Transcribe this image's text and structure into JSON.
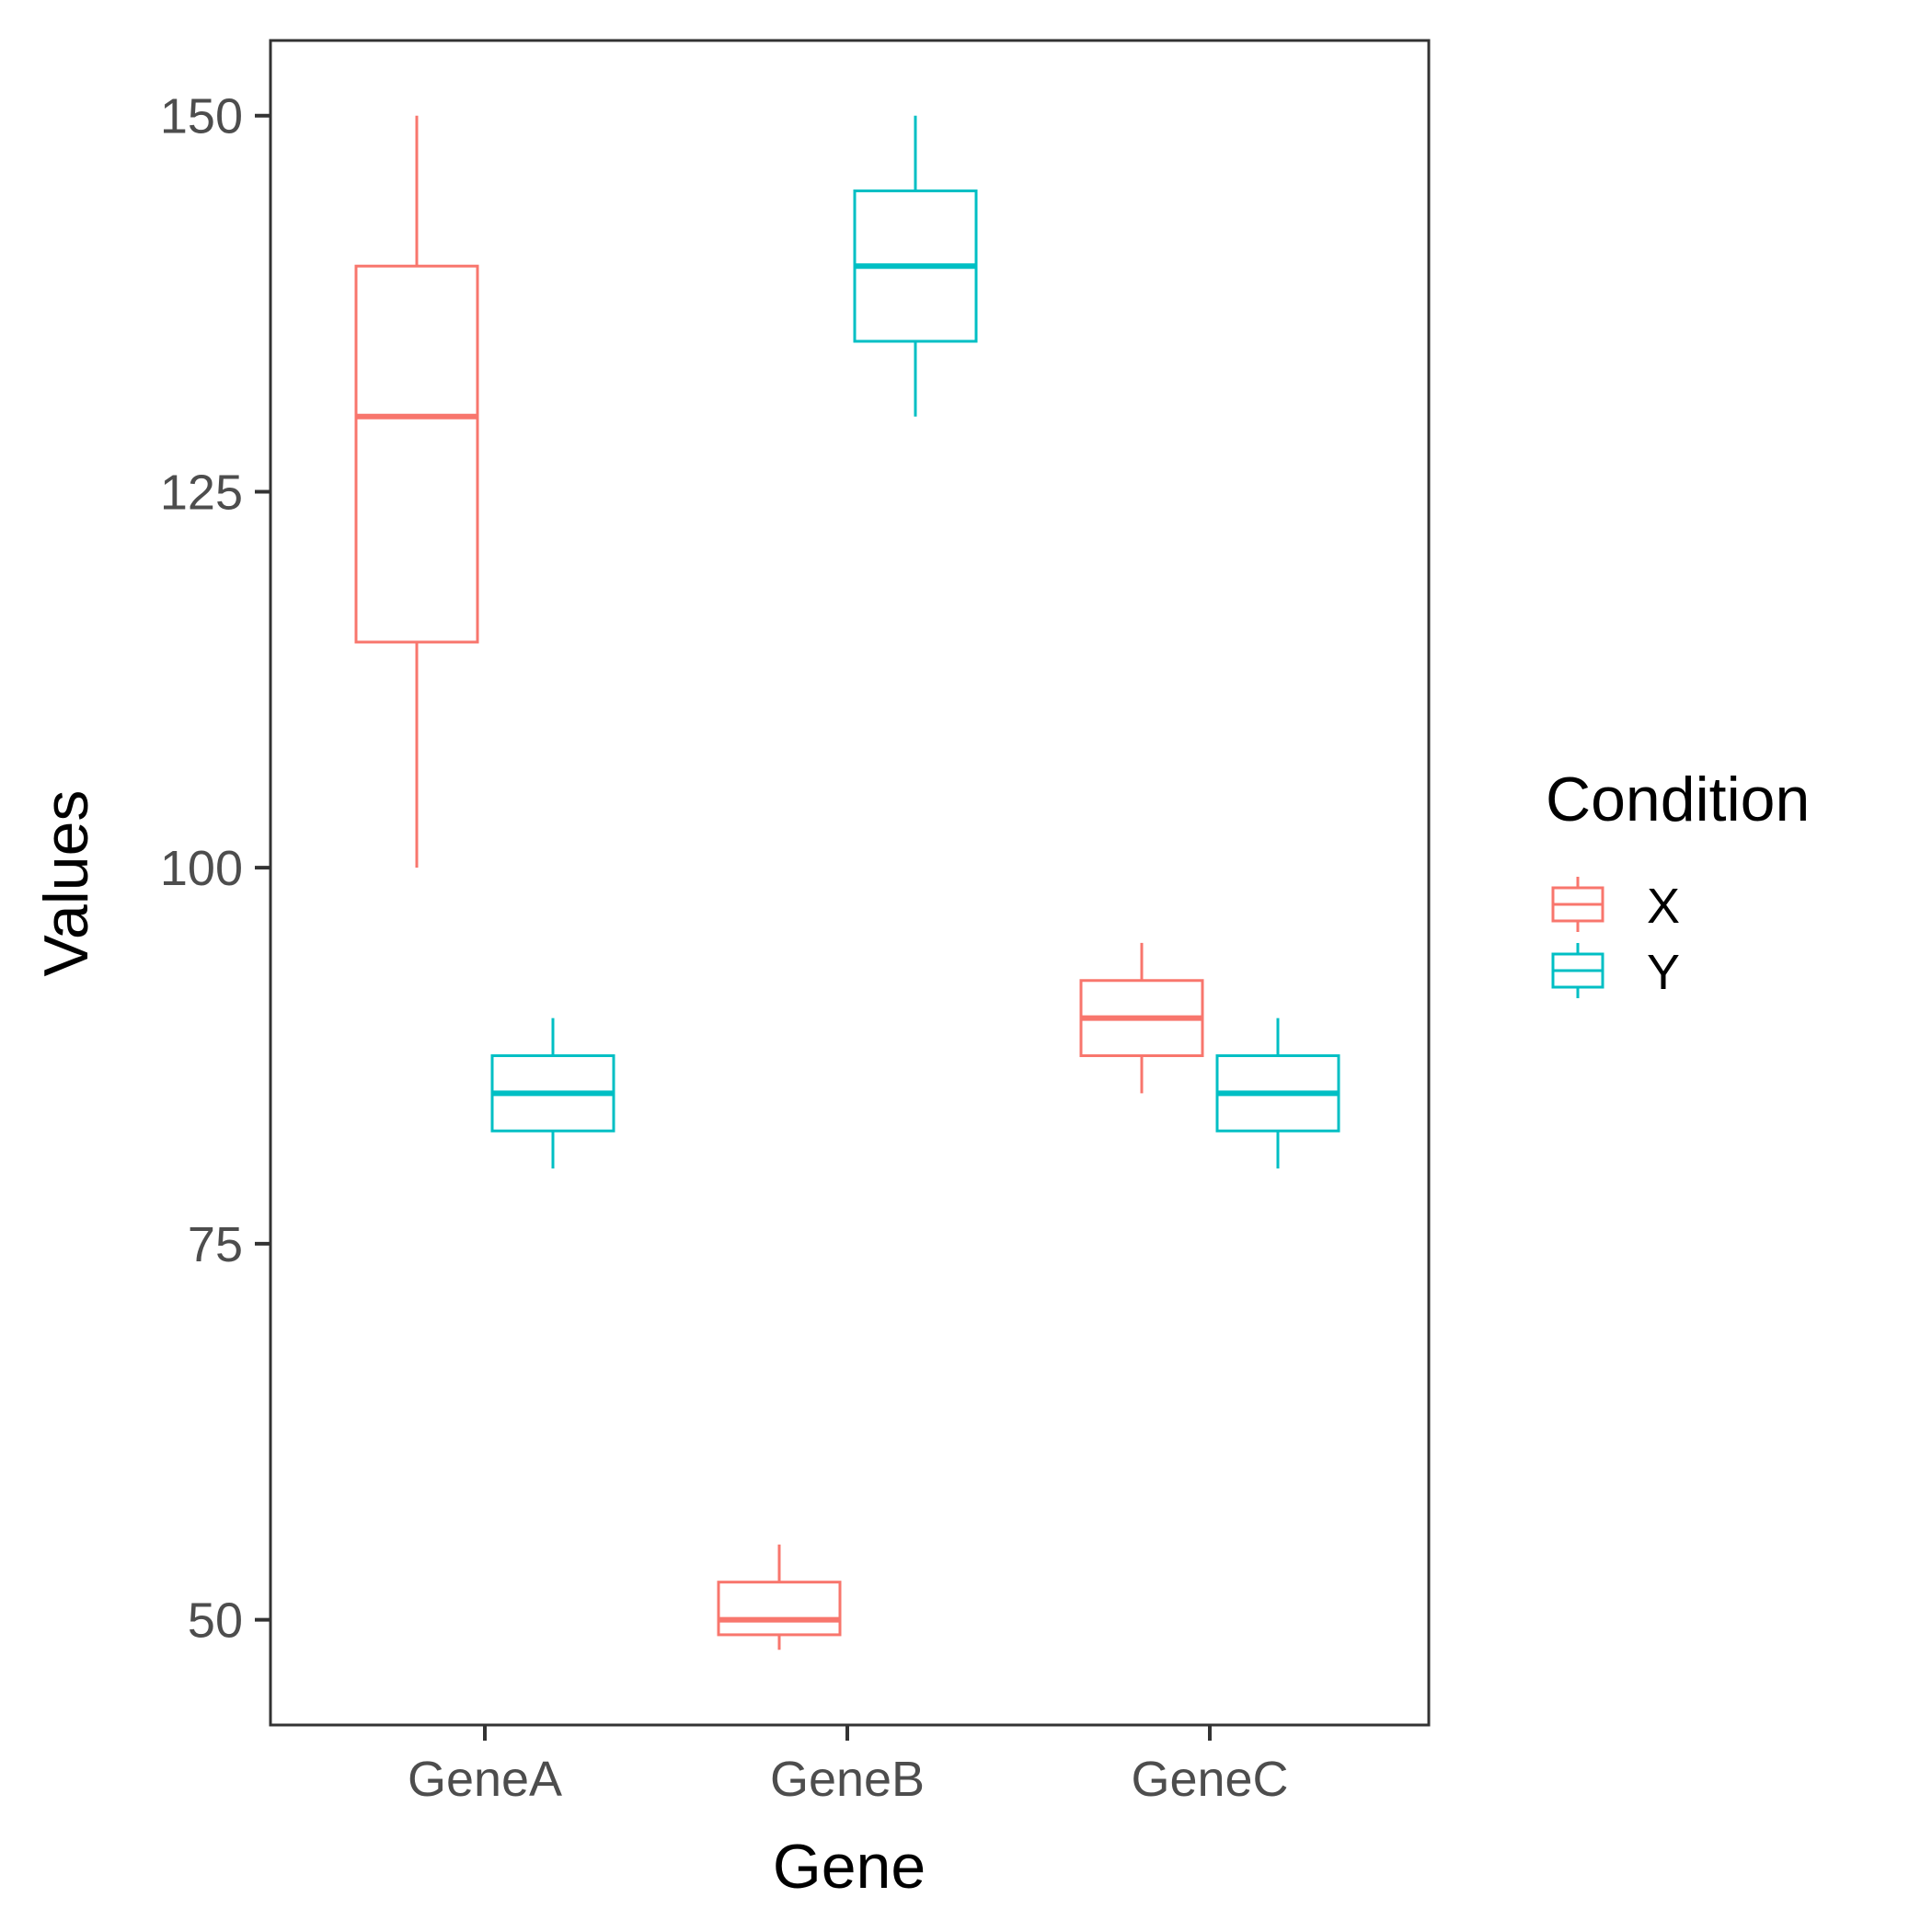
{
  "chart_data": {
    "type": "boxplot",
    "title": "",
    "xlabel": "Gene",
    "ylabel": "Values",
    "categories": [
      "GeneA",
      "GeneB",
      "GeneC"
    ],
    "ylim": [
      43,
      155
    ],
    "yticks": [
      50,
      75,
      100,
      125,
      150
    ],
    "grid": false,
    "legend": {
      "title": "Condition",
      "position": "right"
    },
    "series": [
      {
        "name": "X",
        "color": "#F8766D",
        "boxes": [
          {
            "category": "GeneA",
            "min": 100,
            "q1": 115,
            "median": 130,
            "q3": 140,
            "max": 150
          },
          {
            "category": "GeneB",
            "min": 48,
            "q1": 49,
            "median": 50,
            "q3": 52.5,
            "max": 55
          },
          {
            "category": "GeneC",
            "min": 85,
            "q1": 87.5,
            "median": 90,
            "q3": 92.5,
            "max": 95
          }
        ]
      },
      {
        "name": "Y",
        "color": "#00BFC4",
        "boxes": [
          {
            "category": "GeneA",
            "min": 80,
            "q1": 82.5,
            "median": 85,
            "q3": 87.5,
            "max": 90
          },
          {
            "category": "GeneB",
            "min": 130,
            "q1": 135,
            "median": 140,
            "q3": 145,
            "max": 150
          },
          {
            "category": "GeneC",
            "min": 80,
            "q1": 82.5,
            "median": 85,
            "q3": 87.5,
            "max": 90
          }
        ]
      }
    ]
  }
}
